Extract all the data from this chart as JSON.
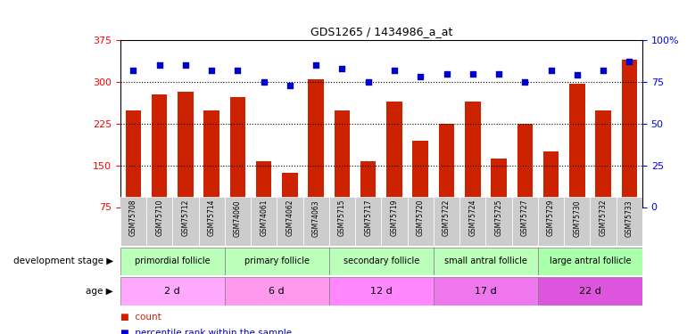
{
  "title": "GDS1265 / 1434986_a_at",
  "samples": [
    "GSM75708",
    "GSM75710",
    "GSM75712",
    "GSM75714",
    "GSM74060",
    "GSM74061",
    "GSM74062",
    "GSM74063",
    "GSM75715",
    "GSM75717",
    "GSM75719",
    "GSM75720",
    "GSM75722",
    "GSM75724",
    "GSM75725",
    "GSM75727",
    "GSM75729",
    "GSM75730",
    "GSM75732",
    "GSM75733"
  ],
  "counts": [
    248,
    278,
    282,
    248,
    272,
    157,
    137,
    305,
    248,
    157,
    264,
    195,
    225,
    264,
    163,
    225,
    175,
    297,
    249,
    340
  ],
  "percentiles": [
    82,
    85,
    85,
    82,
    82,
    75,
    73,
    85,
    83,
    75,
    82,
    78,
    80,
    80,
    80,
    75,
    82,
    79,
    82,
    87
  ],
  "ylim_left": [
    75,
    375
  ],
  "ylim_right": [
    0,
    100
  ],
  "yticks_left": [
    75,
    150,
    225,
    300,
    375
  ],
  "yticks_right": [
    0,
    25,
    50,
    75,
    100
  ],
  "ytick_labels_right": [
    "0",
    "25",
    "50",
    "75",
    "100%"
  ],
  "bar_color": "#cc2200",
  "dot_color": "#0000cc",
  "groups": [
    {
      "label": "primordial follicle",
      "start": 0,
      "end": 4,
      "bg": "#bbffbb"
    },
    {
      "label": "primary follicle",
      "start": 4,
      "end": 8,
      "bg": "#bbffbb"
    },
    {
      "label": "secondary follicle",
      "start": 8,
      "end": 12,
      "bg": "#bbffbb"
    },
    {
      "label": "small antral follicle",
      "start": 12,
      "end": 16,
      "bg": "#bbffbb"
    },
    {
      "label": "large antral follicle",
      "start": 16,
      "end": 20,
      "bg": "#aaffaa"
    }
  ],
  "ages": [
    {
      "label": "2 d",
      "start": 0,
      "end": 4,
      "bg": "#ffaaff"
    },
    {
      "label": "6 d",
      "start": 4,
      "end": 8,
      "bg": "#ff99ee"
    },
    {
      "label": "12 d",
      "start": 8,
      "end": 12,
      "bg": "#ff88ff"
    },
    {
      "label": "17 d",
      "start": 12,
      "end": 16,
      "bg": "#ee77ee"
    },
    {
      "label": "22 d",
      "start": 16,
      "end": 20,
      "bg": "#dd55dd"
    }
  ],
  "legend_count_label": "count",
  "legend_pct_label": "percentile rank within the sample",
  "dev_stage_label": "development stage",
  "age_label": "age",
  "sample_bg": "#cccccc"
}
